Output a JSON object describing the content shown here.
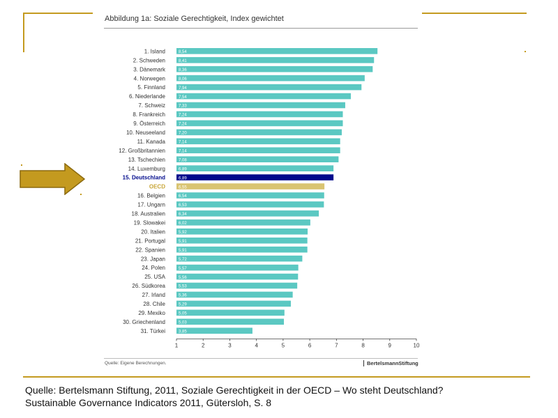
{
  "figure": {
    "title": "Abbildung 1a: Soziale Gerechtigkeit, Index gewichtet",
    "source_note": "Quelle: Eigene Berechnungen.",
    "brand": "BertelsmannStiftung"
  },
  "caption": {
    "line1": "Quelle: Bertelsmann Stiftung, 2011, Soziale Gerechtigkeit in der OECD – Wo steht Deutschland?",
    "line2": "Sustainable Governance Indicators 2011, Gütersloh, S. 8"
  },
  "colors": {
    "bar": "#5bc8c2",
    "highlight": "#000a8c",
    "oecd": "#d9c472",
    "accent": "#c49a1f"
  },
  "chart_data": {
    "type": "bar",
    "orientation": "horizontal",
    "categories": [
      "1. Island",
      "2. Schweden",
      "3. Dänemark",
      "4. Norwegen",
      "5. Finnland",
      "6. Niederlande",
      "7. Schweiz",
      "8. Frankreich",
      "9. Österreich",
      "10. Neuseeland",
      "11. Kanada",
      "12. Großbritannien",
      "13. Tschechien",
      "14. Luxemburg",
      "15. Deutschland",
      "OECD",
      "16. Belgien",
      "17. Ungarn",
      "18. Australien",
      "19. Slowakei",
      "20. Italien",
      "21. Portugal",
      "22. Spanien",
      "23. Japan",
      "24. Polen",
      "25. USA",
      "26. Südkorea",
      "27. Irland",
      "28. Chile",
      "29. Mexiko",
      "30. Griechenland",
      "31. Türkei"
    ],
    "values": [
      8.54,
      8.41,
      8.36,
      8.06,
      7.94,
      7.54,
      7.33,
      7.24,
      7.24,
      7.2,
      7.14,
      7.14,
      7.08,
      6.89,
      6.89,
      6.55,
      6.54,
      6.53,
      6.34,
      6.02,
      5.92,
      5.91,
      5.91,
      5.72,
      5.57,
      5.56,
      5.53,
      5.36,
      5.29,
      5.05,
      5.03,
      3.85
    ],
    "value_labels": [
      "8,54",
      "8,41",
      "8,36",
      "8,06",
      "7,94",
      "7,54",
      "7,33",
      "7,24",
      "7,24",
      "7,20",
      "7,14",
      "7,14",
      "7,08",
      "6,89",
      "6,89",
      "6,55",
      "6,54",
      "6,53",
      "6,34",
      "6,02",
      "5,92",
      "5,91",
      "5,91",
      "5,72",
      "5,57",
      "5,56",
      "5,53",
      "5,36",
      "5,29",
      "5,05",
      "5,03",
      "3,85"
    ],
    "highlight_category": "15. Deutschland",
    "reference_category": "OECD",
    "xlim": [
      1,
      10
    ],
    "xticks": [
      1,
      2,
      3,
      4,
      5,
      6,
      7,
      8,
      9,
      10
    ],
    "grid": false,
    "legend": "none"
  },
  "arrow_icon": "right-arrow-icon"
}
